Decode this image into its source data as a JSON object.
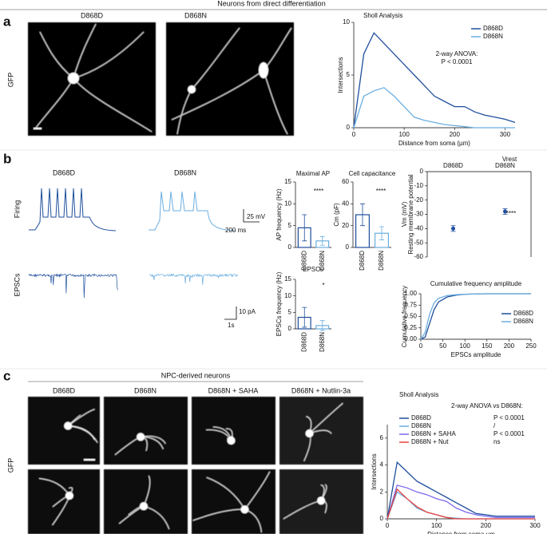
{
  "labels": {
    "top_title": "Neurons from direct differentiation",
    "panel_a": "a",
    "panel_b": "b",
    "panel_c": "c",
    "a_d868d": "D868D",
    "a_d868n": "D868N",
    "a_gfp": "GFP",
    "b_d868d": "D868D",
    "b_d868n": "D868N",
    "firing": "Firing",
    "epscs": "EPSCs",
    "scale_mv": "25 mV",
    "scale_ms": "200 ms",
    "scale_pa": "10 pA",
    "scale_s": "1s",
    "npc_title": "NPC-derived neurons",
    "c_d868d": "D868D",
    "c_d868n": "D868N",
    "c_saha": "D868N + SAHA",
    "c_nutlin": "D868N + Nutlin-3a",
    "c_gfp": "GFP"
  },
  "chart_data": [
    {
      "type": "line",
      "title": "Sholl Analysis",
      "xlabel": "Distance from soma (µm)",
      "ylabel": "Intersections",
      "annotation": [
        "2-way ANOVA:",
        "P < 0.0001"
      ],
      "x": [
        0,
        20,
        40,
        60,
        80,
        100,
        120,
        140,
        160,
        180,
        200,
        220,
        240,
        260,
        280,
        300,
        320
      ],
      "xlim": [
        0,
        320
      ],
      "ylim": [
        0,
        10
      ],
      "xticks": [
        0,
        100,
        200,
        300
      ],
      "yticks": [
        0,
        5,
        10
      ],
      "series": [
        {
          "name": "D868D",
          "color": "#1f4e9c",
          "values": [
            0,
            7,
            9,
            8,
            7,
            6,
            5,
            4,
            3,
            2.5,
            2,
            2,
            1.5,
            1.2,
            1,
            0.8,
            0.5
          ]
        },
        {
          "name": "D868N",
          "color": "#6aaee0",
          "values": [
            0,
            3,
            3.5,
            3.8,
            3,
            2,
            1,
            0.7,
            0.5,
            0.3,
            0.2,
            0.1,
            0,
            0,
            0,
            0,
            0
          ]
        }
      ]
    },
    {
      "type": "bar",
      "title": "Maximal AP",
      "ylabel": "AP frequency (Hz)",
      "annotation": [
        "****"
      ],
      "categories": [
        "D868D",
        "D868N"
      ],
      "values": [
        4.5,
        1.5
      ],
      "errors": [
        3,
        1
      ],
      "colors": [
        "#1f4e9c",
        "#6aaee0"
      ],
      "ylim": [
        0,
        15
      ],
      "yticks": [
        0,
        5,
        10,
        15
      ]
    },
    {
      "type": "bar",
      "title": "Cell capacitance",
      "ylabel": "Cm (pF)",
      "annotation": [
        "****"
      ],
      "categories": [
        "D868D",
        "D868N"
      ],
      "values": [
        30,
        13
      ],
      "errors": [
        10,
        6
      ],
      "colors": [
        "#1f4e9c",
        "#6aaee0"
      ],
      "ylim": [
        0,
        60
      ],
      "yticks": [
        0,
        20,
        40,
        60
      ]
    },
    {
      "type": "bar",
      "title": "EPSCs",
      "ylabel": "EPSCs frequency (Hz)",
      "annotation": [
        "*"
      ],
      "categories": [
        "D868D",
        "D868N"
      ],
      "values": [
        3.5,
        1
      ],
      "errors": [
        3,
        1.5
      ],
      "colors": [
        "#1f4e9c",
        "#6aaee0"
      ],
      "ylim": [
        0,
        15
      ],
      "yticks": [
        0,
        5,
        10,
        15
      ]
    },
    {
      "type": "scatter",
      "title": "Vrest",
      "ylabel": [
        "Resting membrane potential",
        "Vm (mV)"
      ],
      "annotation": [
        "****"
      ],
      "categories": [
        "D868D",
        "D868N"
      ],
      "values": [
        -40,
        -28
      ],
      "errors": [
        2,
        2
      ],
      "colors": [
        "#1f4e9c",
        "#1f4e9c"
      ],
      "ylim": [
        -60,
        0
      ],
      "yticks": [
        0,
        -10,
        -20,
        -30,
        -40,
        -50,
        -60
      ]
    },
    {
      "type": "line",
      "title": "Cumulative frequency amplitude",
      "xlabel": "EPSCs amplitude",
      "ylabel": "Cumulative frequency",
      "x": [
        0,
        10,
        20,
        30,
        40,
        60,
        80,
        100,
        150,
        200,
        250
      ],
      "xlim": [
        0,
        250
      ],
      "ylim": [
        0,
        1
      ],
      "xticks": [
        0,
        50,
        100,
        150,
        200,
        250
      ],
      "yticks": [
        {
          "value": 0,
          "label": "0.00"
        },
        {
          "value": 0.25,
          "label": "0.25"
        },
        {
          "value": 0.5,
          "label": "0.50"
        },
        {
          "value": 0.75,
          "label": "0.75"
        },
        {
          "value": 1,
          "label": "1.00"
        }
      ],
      "series": [
        {
          "name": "D868D",
          "color": "#1f4e9c",
          "values": [
            0,
            0.05,
            0.35,
            0.65,
            0.82,
            0.93,
            0.97,
            0.99,
            1,
            1,
            1
          ]
        },
        {
          "name": "D868N",
          "color": "#6aaee0",
          "values": [
            0,
            0.15,
            0.55,
            0.8,
            0.9,
            0.96,
            0.98,
            0.99,
            1,
            1,
            1
          ]
        }
      ]
    },
    {
      "type": "line",
      "title": "Sholl Analysis",
      "xlabel": "Distance from soma µm",
      "ylabel": "Intersections",
      "annotation": [
        "2-way ANOVA vs D868N:"
      ],
      "legend_notes": [
        "P < 0.0001",
        "/",
        "P < 0.0001",
        "ns"
      ],
      "x": [
        0,
        20,
        40,
        60,
        80,
        100,
        120,
        140,
        160,
        180,
        200,
        220,
        240,
        260,
        280,
        300
      ],
      "xlim": [
        0,
        300
      ],
      "ylim": [
        0,
        7
      ],
      "xticks": [
        0,
        100,
        200,
        300
      ],
      "yticks": [
        0,
        2,
        4,
        6
      ],
      "series": [
        {
          "name": "D868D",
          "color": "#1f4e9c",
          "values": [
            0,
            4.2,
            3.5,
            2.8,
            2.4,
            2,
            1.6,
            1.2,
            0.8,
            0.4,
            0.3,
            0.2,
            0.2,
            0.2,
            0.2,
            0.2
          ]
        },
        {
          "name": "D868N",
          "color": "#6aaee0",
          "values": [
            0,
            2,
            1.5,
            0.8,
            0.5,
            0.3,
            0.1,
            0.05,
            0,
            0,
            0,
            0,
            0,
            0,
            0,
            0
          ]
        },
        {
          "name": "D868N + SAHA",
          "color": "#7b68ee",
          "values": [
            0,
            2.5,
            2.3,
            2,
            1.8,
            1.5,
            1.3,
            0.8,
            0.5,
            0.3,
            0.2,
            0.1,
            0.1,
            0.1,
            0.1,
            0.1
          ]
        },
        {
          "name": "D868N + Nut",
          "color": "#e8413c",
          "values": [
            0,
            2.2,
            1.5,
            0.9,
            0.5,
            0.3,
            0.1,
            0,
            0,
            0,
            0,
            0,
            0,
            0,
            0,
            0
          ]
        }
      ]
    }
  ]
}
